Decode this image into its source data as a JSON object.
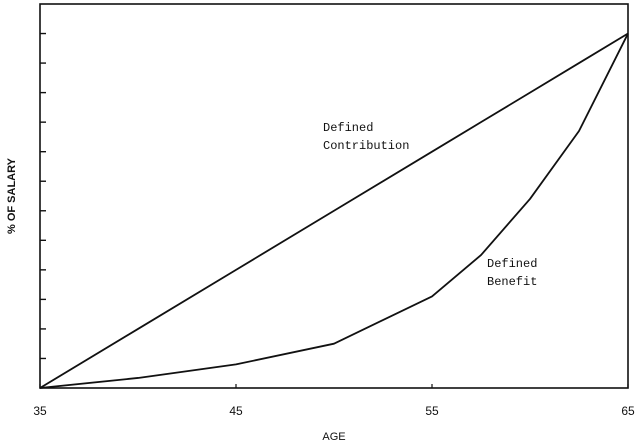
{
  "chart_data": {
    "type": "line",
    "x_label": "AGE",
    "y_label": "% OF SALARY",
    "xlim": [
      35,
      65
    ],
    "xticks": [
      35,
      45,
      55,
      65
    ],
    "ylim": [
      0,
      13
    ],
    "yticks": [
      1,
      2,
      3,
      4,
      5,
      6,
      7,
      8,
      9,
      10,
      11,
      12
    ],
    "x": [
      35,
      40,
      45,
      50,
      55,
      57.5,
      60,
      62.5,
      65
    ],
    "series": [
      {
        "name": "Defined Contribution",
        "color": "#111111",
        "values": [
          0,
          2,
          4,
          6,
          8,
          9,
          10,
          11,
          12
        ]
      },
      {
        "name": "Defined Benefit",
        "color": "#111111",
        "values": [
          0,
          0.34,
          0.8,
          1.5,
          3.1,
          4.5,
          6.4,
          8.7,
          12
        ]
      }
    ],
    "annotations": [
      {
        "lines": [
          "Defined",
          "Contribution"
        ]
      },
      {
        "lines": [
          "Defined",
          "Benefit"
        ]
      }
    ]
  }
}
